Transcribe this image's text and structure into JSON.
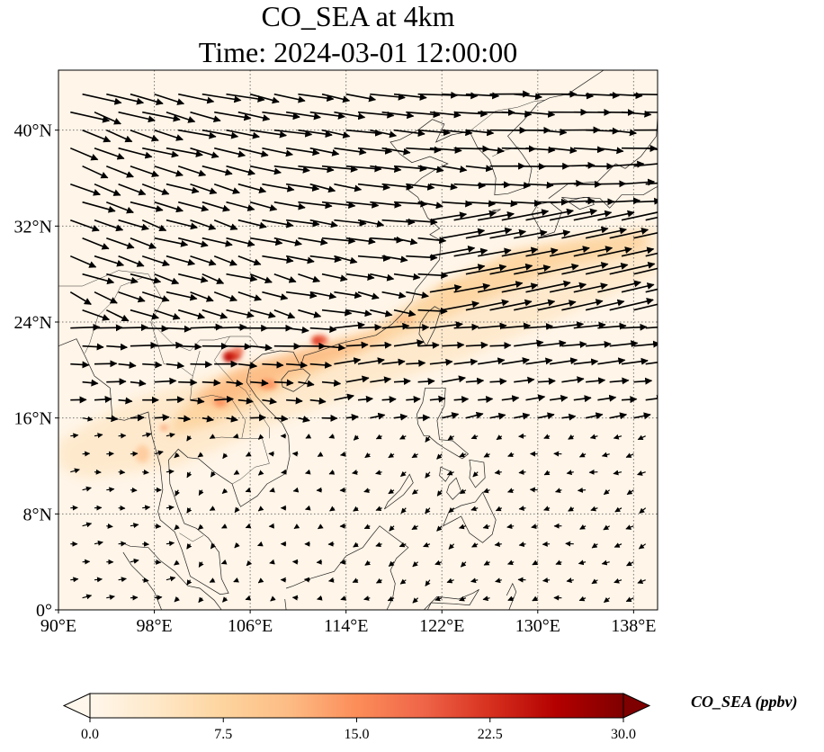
{
  "title": "CO_SEA at 4km",
  "subtitle": "Time: 2024-03-01 12:00:00",
  "map": {
    "extent_lon": [
      90,
      140
    ],
    "extent_lat": [
      0,
      45
    ],
    "xticks": [
      90,
      98,
      106,
      114,
      122,
      130,
      138
    ],
    "xtick_labels": [
      "90°E",
      "98°E",
      "106°E",
      "114°E",
      "122°E",
      "130°E",
      "138°E"
    ],
    "yticks": [
      0,
      8,
      16,
      24,
      32,
      40
    ],
    "ytick_labels": [
      "0°",
      "8°N",
      "16°N",
      "24°N",
      "32°N",
      "40°N"
    ],
    "gridlines": "dotted",
    "field": "CO_SEA concentration at 4 km",
    "wind_vectors": "shown",
    "hotspots": [
      {
        "region": "northern Vietnam / Red River",
        "lon": 104.5,
        "lat": 21.3,
        "level": "high"
      },
      {
        "region": "Guangdong / Pearl River",
        "lon": 111.8,
        "lat": 22.5,
        "level": "moderate-high"
      },
      {
        "region": "Laos",
        "lon": 103.5,
        "lat": 17.5,
        "level": "moderate"
      }
    ]
  },
  "colorbar": {
    "label": "CO_SEA (ppbv)",
    "ticks": [
      0.0,
      7.5,
      15.0,
      22.5,
      30.0
    ],
    "tick_labels": [
      "0.0",
      "7.5",
      "15.0",
      "22.5",
      "30.0"
    ],
    "extend": "both",
    "colormap": "OrRd",
    "colors": [
      "#fff7ec",
      "#fee8c8",
      "#fdd49e",
      "#fdbb84",
      "#fc8d59",
      "#ef6548",
      "#d7301f",
      "#b30000",
      "#7f0000"
    ]
  }
}
